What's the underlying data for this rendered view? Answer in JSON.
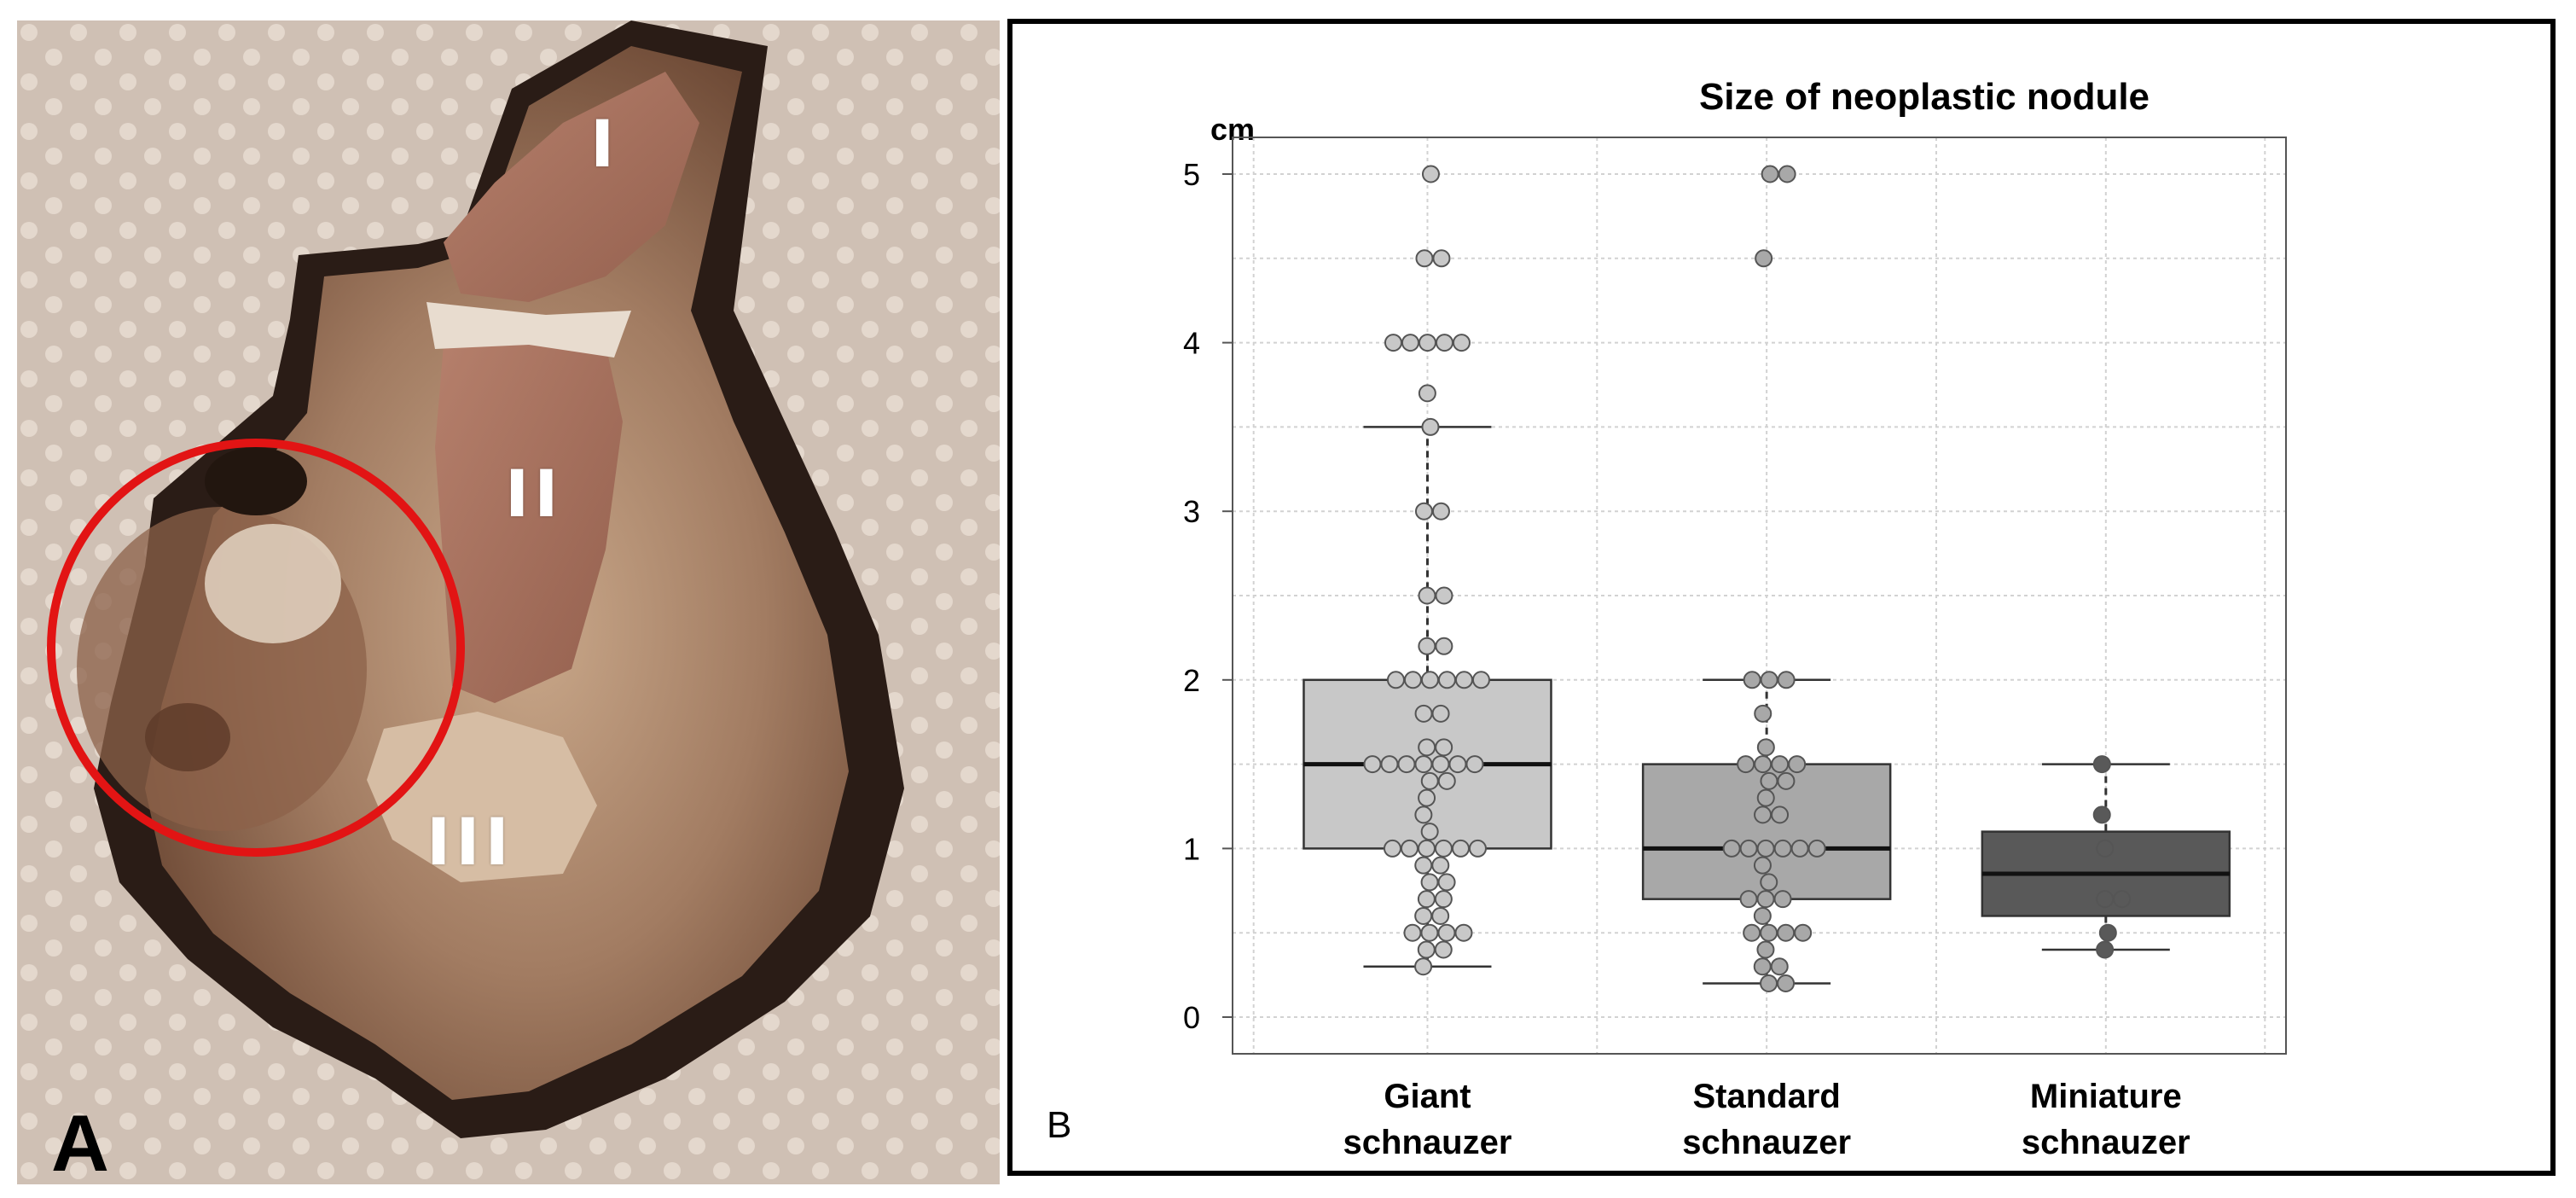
{
  "panels": {
    "a": {
      "label": "A",
      "region_labels": [
        "I",
        "II",
        "III"
      ],
      "annotation": "red-circle-highlight",
      "colors": {
        "background": "#cfc0b4",
        "tissue": "#8f6a52",
        "hair": "#1e1410",
        "circle": "#e21414"
      }
    },
    "b": {
      "label": "B"
    }
  },
  "chart_data": {
    "type": "box",
    "title": "Size of neoplastic nodule",
    "ylabel": "cm",
    "xlabel": "",
    "ylim": [
      0,
      5
    ],
    "yticks": [
      0,
      1,
      2,
      3,
      4,
      5
    ],
    "grid": true,
    "categories": [
      "Giant\nschnauzer",
      "Standard\nschnauzer",
      "Miniature\nschnauzer"
    ],
    "boxes": [
      {
        "name": "Giant schnauzer",
        "whisker_low": 0.3,
        "q1": 1.0,
        "median": 1.5,
        "q3": 2.0,
        "whisker_high": 3.5,
        "color": "#c8c8c8",
        "points": [
          5.0,
          4.5,
          4.5,
          4.0,
          4.0,
          4.0,
          4.0,
          4.0,
          3.7,
          3.5,
          3.0,
          3.0,
          2.5,
          2.5,
          2.2,
          2.2,
          2.0,
          2.0,
          2.0,
          2.0,
          2.0,
          2.0,
          1.8,
          1.8,
          1.6,
          1.6,
          1.5,
          1.5,
          1.5,
          1.5,
          1.5,
          1.5,
          1.5,
          1.4,
          1.4,
          1.3,
          1.2,
          1.1,
          1.0,
          1.0,
          1.0,
          1.0,
          1.0,
          1.0,
          0.9,
          0.9,
          0.8,
          0.8,
          0.7,
          0.7,
          0.6,
          0.6,
          0.5,
          0.5,
          0.5,
          0.5,
          0.4,
          0.4,
          0.3
        ]
      },
      {
        "name": "Standard schnauzer",
        "whisker_low": 0.2,
        "q1": 0.7,
        "median": 1.0,
        "q3": 1.5,
        "whisker_high": 2.0,
        "color": "#a8a8a8",
        "points": [
          5.0,
          5.0,
          4.5,
          2.0,
          2.0,
          2.0,
          1.8,
          1.6,
          1.5,
          1.5,
          1.5,
          1.5,
          1.4,
          1.4,
          1.3,
          1.2,
          1.2,
          1.0,
          1.0,
          1.0,
          1.0,
          1.0,
          1.0,
          0.9,
          0.8,
          0.7,
          0.7,
          0.7,
          0.6,
          0.5,
          0.5,
          0.5,
          0.5,
          0.4,
          0.3,
          0.3,
          0.2,
          0.2
        ]
      },
      {
        "name": "Miniature schnauzer",
        "whisker_low": 0.4,
        "q1": 0.6,
        "median": 0.85,
        "q3": 1.1,
        "whisker_high": 1.5,
        "color": "#595959",
        "points": [
          1.5,
          1.2,
          1.0,
          0.7,
          0.7,
          0.5,
          0.4
        ]
      }
    ],
    "colors": {
      "grid": "#d2d2d2",
      "axis": "#555555",
      "point_stroke": "#555555"
    }
  }
}
